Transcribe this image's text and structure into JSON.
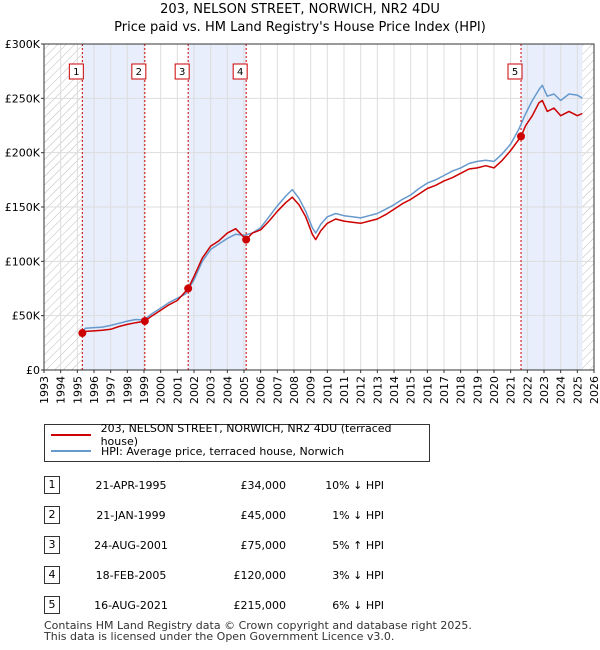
{
  "header": {
    "title": "203, NELSON STREET, NORWICH, NR2 4DU",
    "subtitle": "Price paid vs. HM Land Registry's House Price Index (HPI)"
  },
  "legend": {
    "property_label": "203, NELSON STREET, NORWICH, NR2 4DU (terraced house)",
    "hpi_label": "HPI: Average price, terraced house, Norwich"
  },
  "colors": {
    "property": "#cc0000",
    "hpi": "#6699cc",
    "shade": "#e8eefc",
    "marker": "#cc0000"
  },
  "chart_data": {
    "type": "line",
    "title": "203, NELSON STREET, NORWICH, NR2 4DU",
    "xlim": [
      1993,
      2026
    ],
    "ylim": [
      0,
      300000
    ],
    "x_ticks": [
      "1993",
      "1994",
      "1995",
      "1996",
      "1997",
      "1998",
      "1999",
      "2000",
      "2001",
      "2002",
      "2003",
      "2004",
      "2005",
      "2006",
      "2007",
      "2008",
      "2009",
      "2010",
      "2011",
      "2012",
      "2013",
      "2014",
      "2015",
      "2016",
      "2017",
      "2018",
      "2019",
      "2020",
      "2021",
      "2022",
      "2023",
      "2024",
      "2025",
      "2026"
    ],
    "y_ticks": [
      {
        "value": 0,
        "label": "£0"
      },
      {
        "value": 50000,
        "label": "£50K"
      },
      {
        "value": 100000,
        "label": "£100K"
      },
      {
        "value": 150000,
        "label": "£150K"
      },
      {
        "value": 200000,
        "label": "£200K"
      },
      {
        "value": 250000,
        "label": "£250K"
      },
      {
        "value": 300000,
        "label": "£300K"
      }
    ],
    "hatched_ranges": [
      [
        1993,
        1995.3
      ],
      [
        2025.3,
        2026
      ]
    ],
    "shaded_ranges": [
      [
        1995.3,
        1999.05
      ],
      [
        2001.65,
        2005.13
      ],
      [
        2021.62,
        2025.3
      ]
    ],
    "sales": [
      {
        "num": "1",
        "x": 1995.3,
        "y": 34000
      },
      {
        "num": "2",
        "x": 1999.05,
        "y": 45000
      },
      {
        "num": "3",
        "x": 2001.65,
        "y": 75000
      },
      {
        "num": "4",
        "x": 2005.13,
        "y": 120000
      },
      {
        "num": "5",
        "x": 2021.62,
        "y": 215000
      }
    ],
    "series": [
      {
        "name": "HPI: Average price, terraced house, Norwich",
        "x": [
          1995.3,
          1995.5,
          1996,
          1996.5,
          1997,
          1997.5,
          1998,
          1998.5,
          1999,
          1999.5,
          2000,
          2000.5,
          2001,
          2001.5,
          2002,
          2002.5,
          2003,
          2003.5,
          2004,
          2004.5,
          2005,
          2005.5,
          2006,
          2006.5,
          2007,
          2007.5,
          2007.9,
          2008.3,
          2008.7,
          2009.1,
          2009.3,
          2009.6,
          2010,
          2010.5,
          2011,
          2011.5,
          2012,
          2012.5,
          2013,
          2013.5,
          2014,
          2014.5,
          2015,
          2015.5,
          2016,
          2016.5,
          2017,
          2017.5,
          2018,
          2018.5,
          2019,
          2019.5,
          2020,
          2020.5,
          2021,
          2021.5,
          2021.9,
          2022.3,
          2022.7,
          2022.9,
          2023.2,
          2023.6,
          2024,
          2024.5,
          2025,
          2025.3
        ],
        "y": [
          36000,
          38500,
          39000,
          39500,
          41000,
          43000,
          45000,
          46500,
          46000,
          52000,
          57000,
          62000,
          66000,
          70000,
          83000,
          100000,
          111000,
          116000,
          121000,
          125000,
          124000,
          126000,
          131000,
          141000,
          151000,
          160000,
          166000,
          158000,
          146000,
          131000,
          126000,
          134000,
          141000,
          144000,
          142000,
          141000,
          140000,
          142000,
          144000,
          148000,
          152000,
          157000,
          161000,
          167000,
          172000,
          175000,
          179000,
          183000,
          186000,
          190000,
          192000,
          193000,
          192000,
          199000,
          208000,
          222000,
          236000,
          248000,
          258000,
          262000,
          252000,
          254000,
          248000,
          254000,
          253000,
          250000
        ]
      },
      {
        "name": "203, NELSON STREET, NORWICH, NR2 4DU (terraced house)",
        "x": [
          1995.3,
          1995.5,
          1996,
          1996.5,
          1997,
          1997.5,
          1998,
          1998.5,
          1999.05,
          1999.5,
          2000,
          2000.5,
          2001,
          2001.65,
          2002,
          2002.5,
          2003,
          2003.5,
          2004,
          2004.5,
          2005.13,
          2005.5,
          2006,
          2006.5,
          2007,
          2007.5,
          2007.9,
          2008.3,
          2008.7,
          2009.1,
          2009.3,
          2009.6,
          2010,
          2010.5,
          2011,
          2011.5,
          2012,
          2012.5,
          2013,
          2013.5,
          2014,
          2014.5,
          2015,
          2015.5,
          2016,
          2016.5,
          2017,
          2017.5,
          2018,
          2018.5,
          2019,
          2019.5,
          2020,
          2020.5,
          2021,
          2021.62,
          2021.9,
          2022.3,
          2022.7,
          2022.9,
          2023.2,
          2023.6,
          2024,
          2024.5,
          2025,
          2025.3
        ],
        "y": [
          34000,
          35500,
          36000,
          36500,
          37500,
          40000,
          42000,
          43500,
          45000,
          50000,
          55000,
          60000,
          64000,
          75000,
          86000,
          103000,
          114000,
          119000,
          126000,
          130000,
          120000,
          126000,
          129000,
          137000,
          146000,
          154000,
          159000,
          152000,
          141000,
          125000,
          120000,
          128000,
          135000,
          139000,
          137000,
          136000,
          135000,
          137000,
          139000,
          143000,
          148000,
          153000,
          157000,
          162000,
          167000,
          170000,
          174000,
          177000,
          181000,
          185000,
          186000,
          188000,
          186000,
          193000,
          202000,
          215000,
          225000,
          234000,
          246000,
          248000,
          238000,
          241000,
          234000,
          238000,
          234000,
          236000
        ]
      }
    ]
  },
  "table": {
    "rows": [
      {
        "num": "1",
        "date": "21-APR-1995",
        "price": "£34,000",
        "hpi": "10% ↓ HPI"
      },
      {
        "num": "2",
        "date": "21-JAN-1999",
        "price": "£45,000",
        "hpi": "1% ↓ HPI"
      },
      {
        "num": "3",
        "date": "24-AUG-2001",
        "price": "£75,000",
        "hpi": "5% ↑ HPI"
      },
      {
        "num": "4",
        "date": "18-FEB-2005",
        "price": "£120,000",
        "hpi": "3% ↓ HPI"
      },
      {
        "num": "5",
        "date": "16-AUG-2021",
        "price": "£215,000",
        "hpi": "6% ↓ HPI"
      }
    ]
  },
  "footer": {
    "line1": "Contains HM Land Registry data © Crown copyright and database right 2025.",
    "line2": "This data is licensed under the Open Government Licence v3.0."
  }
}
